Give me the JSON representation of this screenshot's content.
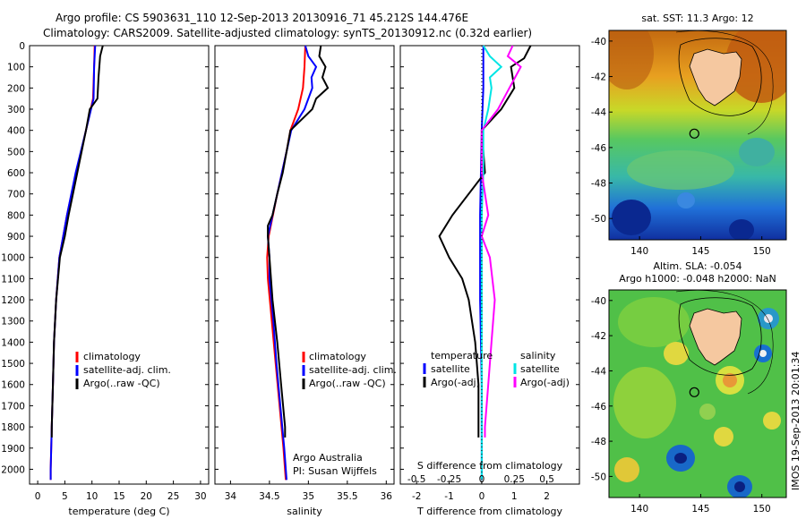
{
  "header": {
    "line1": "Argo profile: CS 5903631_110 12-Sep-2013 20130916_71 45.212S 144.476E",
    "line2": "Climatology: CARS2009. Satellite-adjusted climatology: synTS_20130912.nc (0.32d earlier)"
  },
  "colors": {
    "climatology": "#ff0000",
    "satellite": "#0000ff",
    "argo": "#000000",
    "sal_satellite": "#00e5e5",
    "sal_argo": "#ff00ff",
    "land": "#f5c8a0"
  },
  "watermark": "IMOS 19-Sep-2013 20:01:34",
  "depth_ticks": [
    0,
    100,
    200,
    300,
    400,
    500,
    600,
    700,
    800,
    900,
    1000,
    1100,
    1200,
    1300,
    1400,
    1500,
    1600,
    1700,
    1800,
    1900,
    2000
  ],
  "chart_data": [
    {
      "id": "temp",
      "type": "line",
      "xlabel": "temperature (deg C)",
      "xlim": [
        -1.5,
        31.5
      ],
      "ylim": [
        0,
        2070
      ],
      "xticks": [
        0,
        5,
        10,
        15,
        20,
        25,
        30
      ],
      "legend": [
        "climatology",
        "satellite-adj. clim.",
        "Argo(..raw -QC)"
      ],
      "series": [
        {
          "name": "climatology",
          "color": "#ff0000",
          "depth": [
            0,
            100,
            250,
            400,
            600,
            800,
            1000,
            1200,
            1400,
            1600,
            1800,
            2000,
            2050
          ],
          "values": [
            10.5,
            10.4,
            10.2,
            8.9,
            7.1,
            5.4,
            4.0,
            3.4,
            3.0,
            2.8,
            2.6,
            2.4,
            2.4
          ]
        },
        {
          "name": "satellite-adj. clim.",
          "color": "#0000ff",
          "depth": [
            0,
            100,
            250,
            400,
            600,
            800,
            1000,
            1200,
            1400,
            1600,
            1800,
            2000,
            2050
          ],
          "values": [
            10.6,
            10.4,
            10.3,
            8.9,
            7.0,
            5.4,
            4.0,
            3.4,
            3.0,
            2.8,
            2.6,
            2.4,
            2.4
          ]
        },
        {
          "name": "Argo(..raw -QC)",
          "color": "#000000",
          "depth": [
            0,
            50,
            150,
            250,
            300,
            400,
            600,
            800,
            900,
            1000,
            1200,
            1400,
            1600,
            1800,
            1850
          ],
          "values": [
            12.0,
            11.5,
            11.2,
            11.0,
            9.6,
            8.9,
            7.3,
            5.7,
            5.0,
            4.1,
            3.4,
            3.0,
            2.8,
            2.6,
            2.6
          ]
        }
      ]
    },
    {
      "id": "sal",
      "type": "line",
      "xlabel": "salinity",
      "xlim": [
        33.8,
        36.1
      ],
      "ylim": [
        0,
        2070
      ],
      "xticks": [
        34,
        34.5,
        35,
        35.5,
        36
      ],
      "legend": [
        "climatology",
        "satellite-adj. clim.",
        "Argo(..raw -QC)"
      ],
      "annotations": [
        "Argo Australia",
        "PI: Susan Wijffels"
      ],
      "series": [
        {
          "name": "climatology",
          "color": "#ff0000",
          "depth": [
            0,
            100,
            200,
            300,
            400,
            500,
            700,
            900,
            1000,
            1100,
            1300,
            1500,
            1700,
            1900,
            2050
          ],
          "values": [
            34.96,
            34.95,
            34.93,
            34.87,
            34.77,
            34.72,
            34.6,
            34.49,
            34.47,
            34.48,
            34.53,
            34.58,
            34.63,
            34.68,
            34.71
          ]
        },
        {
          "name": "satellite-adj. clim.",
          "color": "#0000ff",
          "depth": [
            0,
            50,
            100,
            150,
            200,
            300,
            400,
            500,
            700,
            900,
            1000,
            1100,
            1300,
            1500,
            1700,
            1900,
            2050
          ],
          "values": [
            34.96,
            35.0,
            35.1,
            35.04,
            35.05,
            34.95,
            34.78,
            34.72,
            34.6,
            34.48,
            34.5,
            34.5,
            34.55,
            34.59,
            34.64,
            34.69,
            34.72
          ]
        },
        {
          "name": "Argo(..raw -QC)",
          "color": "#000000",
          "depth": [
            0,
            50,
            100,
            150,
            200,
            250,
            300,
            400,
            500,
            600,
            700,
            800,
            850,
            900,
            1000,
            1100,
            1200,
            1400,
            1600,
            1800,
            1850
          ],
          "values": [
            35.16,
            35.14,
            35.22,
            35.18,
            35.25,
            35.1,
            35.05,
            34.77,
            34.72,
            34.67,
            34.6,
            34.54,
            34.48,
            34.48,
            34.5,
            34.52,
            34.54,
            34.6,
            34.65,
            34.7,
            34.7
          ]
        }
      ]
    },
    {
      "id": "diff",
      "type": "line",
      "xlabel": "T difference from climatology",
      "xlabel_top": "S difference from climatology",
      "xlim": [
        -2.5,
        3.0
      ],
      "ylim": [
        0,
        2070
      ],
      "xticks": [
        -2,
        -1,
        0,
        1,
        2
      ],
      "xticks_top": [
        -0.5,
        -0.25,
        0,
        0.25,
        0.5
      ],
      "legend_left": {
        "title": "temperature",
        "items": [
          "satellite",
          "Argo(-adj)"
        ]
      },
      "legend_right": {
        "title": "salinity",
        "items": [
          "satellite",
          "Argo(-adj)"
        ]
      },
      "series": [
        {
          "name": "temperature satellite",
          "color": "#0000ff",
          "depth": [
            0,
            200,
            400,
            800,
            1200,
            1600,
            2000,
            2050
          ],
          "values": [
            0.05,
            0.05,
            0.0,
            -0.05,
            -0.05,
            0.0,
            0.0,
            0.0
          ]
        },
        {
          "name": "temperature Argo(-adj)",
          "color": "#000000",
          "depth": [
            0,
            60,
            100,
            200,
            300,
            400,
            600,
            800,
            900,
            1000,
            1100,
            1200,
            1400,
            1600,
            1800,
            1850
          ],
          "values": [
            1.5,
            1.3,
            0.9,
            1.0,
            0.6,
            0.0,
            0.1,
            -0.9,
            -1.3,
            -1.0,
            -0.6,
            -0.4,
            -0.2,
            -0.1,
            -0.1,
            -0.1
          ]
        },
        {
          "name": "salinity satellite",
          "color": "#00e5e5",
          "depth": [
            0,
            50,
            100,
            150,
            200,
            300,
            400,
            600,
            800,
            1200,
            1600,
            2000,
            2050
          ],
          "values": [
            0.05,
            0.25,
            0.6,
            0.25,
            0.3,
            0.2,
            0.05,
            0.05,
            0.0,
            0.0,
            0.0,
            0.0,
            0.0
          ]
        },
        {
          "name": "salinity Argo(-adj)",
          "color": "#ff00ff",
          "depth": [
            0,
            50,
            100,
            200,
            300,
            400,
            600,
            800,
            900,
            1000,
            1200,
            1400,
            1600,
            1800,
            1850
          ],
          "values": [
            0.95,
            0.8,
            1.2,
            0.85,
            0.5,
            0.0,
            0.0,
            0.2,
            0.0,
            0.25,
            0.4,
            0.3,
            0.2,
            0.1,
            0.1
          ]
        }
      ]
    },
    {
      "id": "sst-map",
      "type": "heatmap",
      "title": "sat. SST: 11.3 Argo: 12",
      "xticks": [
        140,
        145,
        150
      ],
      "yticks": [
        -40,
        -42,
        -44,
        -46,
        -48,
        -50
      ],
      "xlim": [
        137.5,
        152
      ],
      "ylim": [
        -51.2,
        -39.4
      ],
      "marker": {
        "lon": 144.476,
        "lat": -45.212
      }
    },
    {
      "id": "sla-map",
      "type": "heatmap",
      "title_line1": "Altim. SLA: -0.054",
      "title_line2": "Argo h1000: -0.048 h2000: NaN",
      "xticks": [
        140,
        145,
        150
      ],
      "yticks": [
        -40,
        -42,
        -44,
        -46,
        -48,
        -50
      ],
      "xlim": [
        137.5,
        152
      ],
      "ylim": [
        -51.2,
        -39.4
      ],
      "marker": {
        "lon": 144.476,
        "lat": -45.212
      }
    }
  ]
}
